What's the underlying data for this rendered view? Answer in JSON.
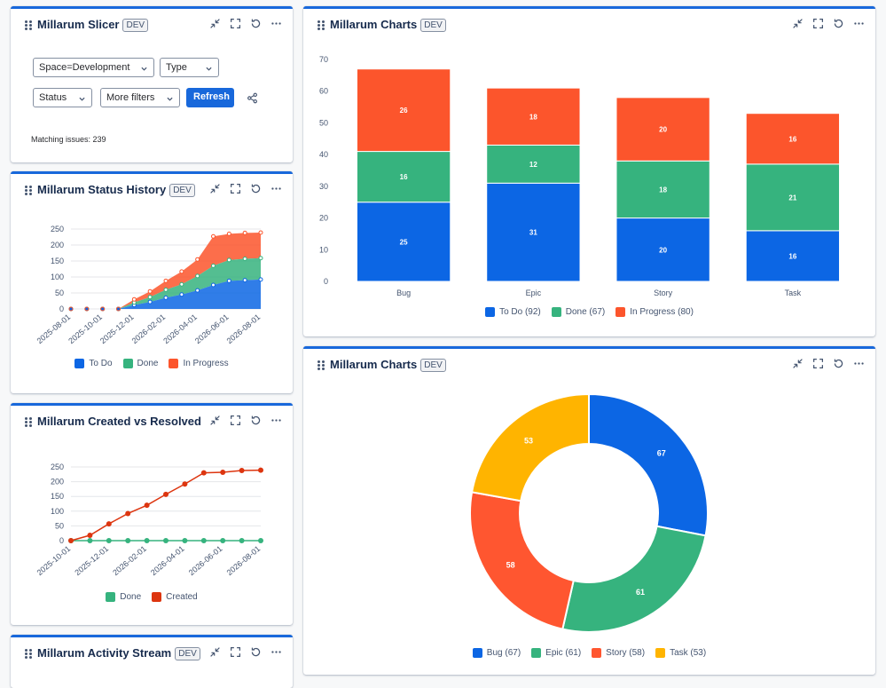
{
  "badge": "DEV",
  "colors": {
    "todo": "#0c66e4",
    "done": "#36b37e",
    "inprogress": "#fc552c",
    "story_red": "#ff5630",
    "task": "#ffb400",
    "created": "#dd350f"
  },
  "slicer": {
    "title": "Millarum Slicer",
    "space_filter": "Space=Development",
    "type_filter": "Type",
    "status_filter": "Status",
    "more_filters": "More filters",
    "refresh": "Refresh",
    "matching": "Matching issues: 239"
  },
  "status_history": {
    "title": "Millarum Status History",
    "legend": [
      "To Do",
      "Done",
      "In Progress"
    ],
    "chart_data": {
      "type": "area",
      "x": [
        "2025-08-01",
        "2025-09-01",
        "2025-10-01",
        "2025-11-01",
        "2025-12-01",
        "2026-01-01",
        "2026-02-01",
        "2026-03-01",
        "2026-04-01",
        "2026-05-01",
        "2026-06-01",
        "2026-07-01",
        "2026-08-01"
      ],
      "x_tick_labels": [
        "2025-08-01",
        "2025-10-01",
        "2025-12-01",
        "2026-02-01",
        "2026-04-01",
        "2026-06-01",
        "2026-08-01"
      ],
      "series": [
        {
          "name": "To Do",
          "values": [
            0,
            0,
            0,
            0,
            12,
            22,
            35,
            45,
            58,
            75,
            88,
            90,
            92
          ]
        },
        {
          "name": "Done",
          "values": [
            0,
            0,
            0,
            0,
            8,
            15,
            25,
            32,
            45,
            60,
            65,
            67,
            67
          ]
        },
        {
          "name": "In Progress",
          "values": [
            0,
            0,
            0,
            0,
            10,
            18,
            28,
            40,
            52,
            92,
            82,
            81,
            80
          ]
        }
      ],
      "ylim": [
        0,
        250
      ],
      "yticks": [
        0,
        50,
        100,
        150,
        200,
        250
      ],
      "stacked": true
    }
  },
  "created_resolved": {
    "title": "Millarum Created vs Resolved",
    "legend": [
      "Done",
      "Created"
    ],
    "chart_data": {
      "type": "line",
      "x": [
        "2025-10-01",
        "2025-11-01",
        "2025-12-01",
        "2026-01-01",
        "2026-02-01",
        "2026-03-01",
        "2026-04-01",
        "2026-05-01",
        "2026-06-01",
        "2026-07-01",
        "2026-08-01"
      ],
      "x_tick_labels": [
        "2025-10-01",
        "2025-12-01",
        "2026-02-01",
        "2026-04-01",
        "2026-06-01",
        "2026-08-01"
      ],
      "series": [
        {
          "name": "Done",
          "values": [
            0,
            0,
            0,
            0,
            0,
            0,
            0,
            0,
            0,
            0,
            0
          ]
        },
        {
          "name": "Created",
          "values": [
            0,
            18,
            57,
            92,
            120,
            157,
            192,
            230,
            232,
            238,
            239
          ]
        }
      ],
      "ylim": [
        0,
        250
      ],
      "yticks": [
        0,
        50,
        100,
        150,
        200,
        250
      ]
    }
  },
  "activity": {
    "title": "Millarum Activity Stream"
  },
  "bar_panel": {
    "title": "Millarum Charts",
    "legend": [
      "To Do (92)",
      "Done (67)",
      "In Progress (80)"
    ],
    "chart_data": {
      "type": "bar",
      "stacked": true,
      "categories": [
        "Bug",
        "Epic",
        "Story",
        "Task"
      ],
      "series": [
        {
          "name": "To Do",
          "values": [
            25,
            31,
            20,
            16
          ]
        },
        {
          "name": "Done",
          "values": [
            16,
            12,
            18,
            21
          ]
        },
        {
          "name": "In Progress",
          "values": [
            26,
            18,
            20,
            16
          ]
        }
      ],
      "ylim": [
        0,
        70
      ],
      "yticks": [
        0,
        10,
        20,
        30,
        40,
        50,
        60,
        70
      ]
    }
  },
  "pie_panel": {
    "title": "Millarum Charts",
    "legend": [
      "Bug (67)",
      "Epic (61)",
      "Story (58)",
      "Task (53)"
    ],
    "chart_data": {
      "type": "pie",
      "donut": true,
      "categories": [
        "Bug",
        "Epic",
        "Story",
        "Task"
      ],
      "values": [
        67,
        61,
        58,
        53
      ]
    }
  }
}
